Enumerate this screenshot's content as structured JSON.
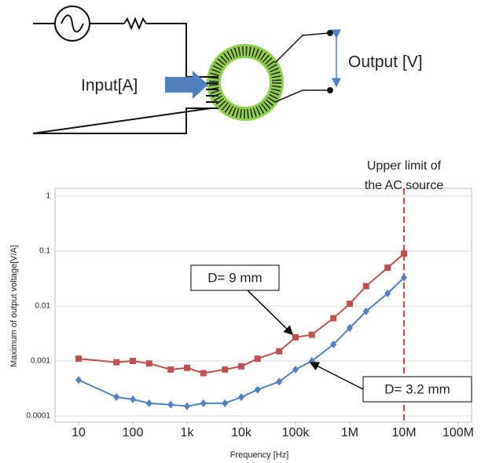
{
  "diagram": {
    "input_label": "Input[A]",
    "output_label": "Output [V]"
  },
  "chart_data": {
    "type": "line",
    "x_label": "Frequency [Hz]",
    "y_label": "Maximum of output voltage[V/A]",
    "xscale": "log",
    "yscale": "log",
    "grid": true,
    "xlim": [
      10,
      100000000
    ],
    "ylim": [
      0.0001,
      1
    ],
    "xticks": [
      10,
      100,
      {
        "value": 1000,
        "label": "1k"
      },
      {
        "value": 10000,
        "label": "10k"
      },
      {
        "value": 100000,
        "label": "100k"
      },
      {
        "value": 1000000,
        "label": "1M"
      },
      {
        "value": 10000000,
        "label": "10M"
      },
      {
        "value": 100000000,
        "label": "100M"
      }
    ],
    "yticks": [
      0.0001,
      0.001,
      0.01,
      0.1,
      1
    ],
    "x": [
      10,
      50,
      100,
      200,
      500,
      1000,
      2000,
      5000,
      10000,
      20000,
      50000,
      100000,
      200000,
      500000,
      1000000,
      2000000,
      5000000,
      10000000
    ],
    "series": [
      {
        "name": "D= 9 mm",
        "color": "#c0504d",
        "marker": "square",
        "values": [
          0.0011,
          0.00095,
          0.001,
          0.0009,
          0.0007,
          0.00075,
          0.0006,
          0.0007,
          0.0008,
          0.0011,
          0.0015,
          0.0027,
          0.003,
          0.006,
          0.011,
          0.023,
          0.05,
          0.09
        ]
      },
      {
        "name": "D= 3.2 mm",
        "color": "#4f81bd",
        "marker": "diamond",
        "values": [
          0.00045,
          0.00022,
          0.0002,
          0.00017,
          0.00016,
          0.00015,
          0.00017,
          0.00017,
          0.00022,
          0.0003,
          0.00042,
          0.0007,
          0.001,
          0.002,
          0.004,
          0.008,
          0.017,
          0.033
        ]
      }
    ],
    "vline": {
      "x": 10000000,
      "color": "#cc0000",
      "label": [
        "Upper limit of",
        "the AC source"
      ]
    }
  }
}
